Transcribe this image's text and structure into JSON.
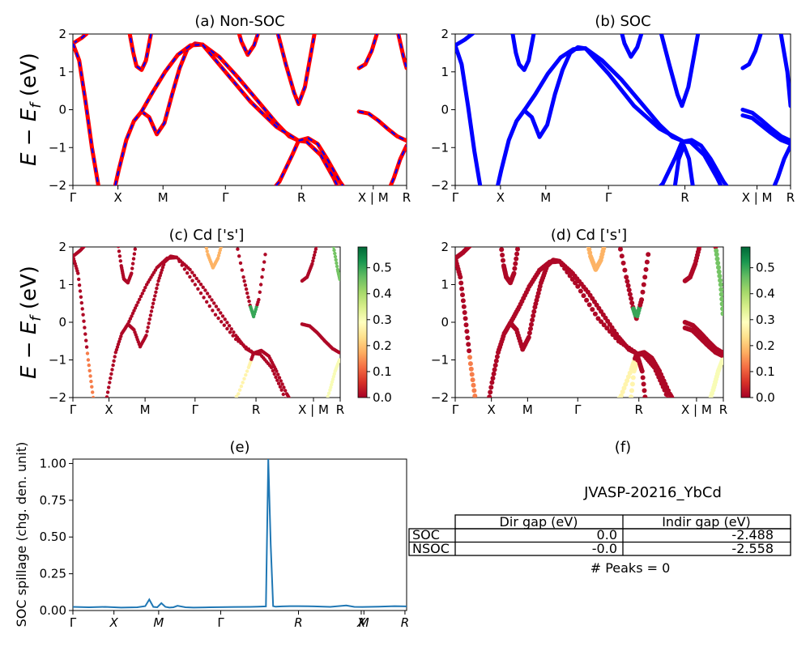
{
  "figure": {
    "ylabel_main": "E − E_f (eV)",
    "panel_a_title": "(a) Non-SOC",
    "panel_b_title": "(b) SOC",
    "panel_c_title": "(c)  Cd ['s']",
    "panel_d_title": "(d) Cd ['s']",
    "panel_e_title": "(e)",
    "panel_f_title": "(f)"
  },
  "colors": {
    "nonsoc_line": "#ff0000",
    "nonsoc_dash": "#0000ff",
    "soc_line": "#0000ff",
    "spillage_line": "#1f77b4",
    "colormap": [
      "#a50026",
      "#d73027",
      "#f46d43",
      "#fdae61",
      "#fee08b",
      "#ffffbf",
      "#d9ef8b",
      "#a6d96a",
      "#66bd63",
      "#1a9850",
      "#006837"
    ]
  },
  "chart_data": [
    {
      "type": "line",
      "title": "(a) Non-SOC",
      "ylabel": "E − E_f (eV)",
      "ylim": [
        -2,
        2
      ],
      "xticks": [
        "Γ",
        "X",
        "M",
        "Γ",
        "R",
        "X | M",
        "R"
      ],
      "yticks": [
        "−2",
        "−1",
        "0",
        "1",
        "2"
      ],
      "series": [
        {
          "x": [
            0,
            0.14,
            0.28,
            0.5
          ],
          "y": [
            1.75,
            1.9,
            2.1,
            2.6
          ]
        },
        {
          "x": [
            0,
            0.1,
            0.2,
            0.3,
            0.4,
            0.5
          ],
          "y": [
            1.75,
            1.3,
            0.2,
            -1.0,
            -2.0,
            -2.6
          ]
        },
        {
          "x": [
            0.6,
            0.72,
            0.84,
            0.96,
            1.08
          ],
          "y": [
            -2.5,
            -1.6,
            -0.8,
            -0.3,
            -0.05
          ]
        },
        {
          "x": [
            1.08,
            1.2,
            1.32,
            1.44,
            1.56,
            1.68,
            1.8,
            1.92,
            2.04
          ],
          "y": [
            -0.05,
            -0.2,
            -0.65,
            -0.35,
            0.4,
            1.1,
            1.6,
            1.75,
            1.72
          ]
        },
        {
          "x": [
            1.08,
            1.25,
            1.45,
            1.65,
            1.85,
            2.04
          ],
          "y": [
            -0.05,
            0.45,
            1.0,
            1.45,
            1.7,
            1.72
          ]
        },
        {
          "x": [
            0.85,
            0.95,
            1.0,
            1.08,
            1.15,
            1.25
          ],
          "y": [
            2.4,
            1.5,
            1.15,
            1.05,
            1.3,
            2.2
          ]
        },
        {
          "x": [
            2.04,
            2.3,
            2.6,
            2.9,
            3.2,
            3.4,
            3.55
          ],
          "y": [
            1.72,
            1.4,
            0.85,
            0.25,
            -0.35,
            -0.7,
            -0.82
          ]
        },
        {
          "x": [
            2.04,
            2.4,
            2.8,
            3.2,
            3.55
          ],
          "y": [
            1.72,
            1.0,
            0.2,
            -0.45,
            -0.82
          ]
        },
        {
          "x": [
            2.55,
            2.65,
            2.75,
            2.85,
            2.95
          ],
          "y": [
            2.4,
            1.8,
            1.45,
            1.7,
            2.2
          ]
        },
        {
          "x": [
            3.15,
            3.35,
            3.48,
            3.55,
            3.65,
            3.8
          ],
          "y": [
            2.5,
            1.2,
            0.45,
            0.15,
            0.6,
            2.0
          ]
        },
        {
          "x": [
            3.0,
            3.25,
            3.45,
            3.55,
            3.68,
            3.9,
            4.1,
            4.33
          ],
          "y": [
            -2.4,
            -1.9,
            -1.2,
            -0.82,
            -0.85,
            -1.2,
            -1.8,
            -2.6
          ]
        },
        {
          "x": [
            3.55,
            3.7,
            3.85,
            4.0,
            4.2,
            4.33
          ],
          "y": [
            -0.82,
            -0.75,
            -0.9,
            -1.3,
            -1.9,
            -2.2
          ]
        },
        {
          "x": [
            4.5,
            4.6,
            4.7,
            4.8,
            4.9
          ],
          "y": [
            1.1,
            1.2,
            1.55,
            2.1,
            2.6
          ]
        },
        {
          "x": [
            4.5,
            4.65,
            4.8,
            4.95,
            5.1,
            5.25
          ],
          "y": [
            -0.05,
            -0.1,
            -0.28,
            -0.5,
            -0.7,
            -0.82
          ]
        },
        {
          "x": [
            4.9,
            5.05,
            5.15,
            5.25
          ],
          "y": [
            -2.4,
            -1.8,
            -1.3,
            -0.95
          ]
        },
        {
          "x": [
            5.05,
            5.12,
            5.2,
            5.25
          ],
          "y": [
            2.5,
            2.0,
            1.4,
            1.1
          ]
        }
      ]
    },
    {
      "type": "line",
      "title": "(b) SOC",
      "ylim": [
        -2,
        2
      ],
      "xticks": [
        "Γ",
        "X",
        "M",
        "Γ",
        "R",
        "X | M",
        "R"
      ],
      "yticks": [
        "−2",
        "−1",
        "0",
        "1",
        "2"
      ],
      "series": [
        {
          "x": [
            0,
            0.15,
            0.3,
            0.5
          ],
          "y": [
            1.7,
            1.85,
            2.05,
            2.6
          ]
        },
        {
          "x": [
            0,
            0.1,
            0.2,
            0.3,
            0.4,
            0.5
          ],
          "y": [
            1.7,
            1.2,
            0.1,
            -1.1,
            -2.1,
            -2.7
          ]
        },
        {
          "x": [
            0.6,
            0.72,
            0.84,
            0.96,
            1.08
          ],
          "y": [
            -2.5,
            -1.6,
            -0.8,
            -0.3,
            -0.02
          ]
        },
        {
          "x": [
            1.08,
            1.2,
            1.32,
            1.44,
            1.56,
            1.68,
            1.8,
            1.92,
            2.04
          ],
          "y": [
            -0.02,
            -0.2,
            -0.72,
            -0.4,
            0.4,
            1.05,
            1.5,
            1.65,
            1.62
          ]
        },
        {
          "x": [
            1.08,
            1.25,
            1.45,
            1.65,
            1.85,
            2.04
          ],
          "y": [
            -0.02,
            0.4,
            0.95,
            1.38,
            1.6,
            1.62
          ]
        },
        {
          "x": [
            0.85,
            0.95,
            1.0,
            1.08,
            1.15,
            1.25
          ],
          "y": [
            2.5,
            1.5,
            1.2,
            1.05,
            1.3,
            2.2
          ]
        },
        {
          "x": [
            2.04,
            2.3,
            2.6,
            2.9,
            3.2,
            3.4,
            3.55
          ],
          "y": [
            1.62,
            1.3,
            0.8,
            0.2,
            -0.4,
            -0.72,
            -0.82
          ]
        },
        {
          "x": [
            2.04,
            2.4,
            2.8,
            3.2,
            3.55
          ],
          "y": [
            1.62,
            0.95,
            0.1,
            -0.5,
            -0.82
          ]
        },
        {
          "x": [
            2.55,
            2.65,
            2.75,
            2.85,
            2.95
          ],
          "y": [
            2.4,
            1.75,
            1.4,
            1.65,
            2.2
          ]
        },
        {
          "x": [
            3.15,
            3.35,
            3.48,
            3.55,
            3.65,
            3.8
          ],
          "y": [
            2.5,
            1.2,
            0.4,
            0.1,
            0.6,
            2.0
          ]
        },
        {
          "x": [
            3.0,
            3.25,
            3.45,
            3.55,
            3.68,
            3.9,
            4.1,
            4.33
          ],
          "y": [
            -2.4,
            -1.95,
            -1.25,
            -0.85,
            -0.85,
            -1.2,
            -1.8,
            -2.6
          ]
        },
        {
          "x": [
            3.55,
            3.7,
            3.85,
            4.0,
            4.2,
            4.33
          ],
          "y": [
            -0.85,
            -0.8,
            -0.95,
            -1.3,
            -1.9,
            -2.2
          ]
        },
        {
          "x": [
            3.4,
            3.5,
            3.58,
            3.66,
            3.76
          ],
          "y": [
            -2.5,
            -1.3,
            -0.95,
            -1.3,
            -2.5
          ]
        },
        {
          "x": [
            4.5,
            4.6,
            4.7,
            4.8,
            4.9
          ],
          "y": [
            1.1,
            1.2,
            1.55,
            2.1,
            2.6
          ]
        },
        {
          "x": [
            4.5,
            4.65,
            4.8,
            4.95,
            5.1,
            5.25
          ],
          "y": [
            0.0,
            -0.08,
            -0.28,
            -0.5,
            -0.7,
            -0.82
          ]
        },
        {
          "x": [
            4.5,
            4.65,
            4.8,
            4.95,
            5.1,
            5.25
          ],
          "y": [
            -0.15,
            -0.22,
            -0.42,
            -0.62,
            -0.8,
            -0.9
          ]
        },
        {
          "x": [
            4.9,
            5.05,
            5.15,
            5.25
          ],
          "y": [
            -2.4,
            -1.8,
            -1.3,
            -0.95
          ]
        },
        {
          "x": [
            5.05,
            5.12,
            5.2,
            5.25
          ],
          "y": [
            2.5,
            1.8,
            1.0,
            0.1
          ]
        }
      ]
    },
    {
      "type": "scatter",
      "title": "(c)  Cd ['s']",
      "ylabel": "E − E_f (eV)",
      "ylim": [
        -2,
        2
      ],
      "xticks": [
        "Γ",
        "X",
        "M",
        "Γ",
        "R",
        "X | M",
        "R"
      ],
      "yticks": [
        "−2",
        "−1",
        "0",
        "1",
        "2"
      ],
      "colorbar_ticks": [
        "0.0",
        "0.1",
        "0.2",
        "0.3",
        "0.4",
        "0.5"
      ],
      "colorbar_max": 0.58
    },
    {
      "type": "scatter",
      "title": "(d) Cd ['s']",
      "ylim": [
        -2,
        2
      ],
      "xticks": [
        "Γ",
        "X",
        "M",
        "Γ",
        "R",
        "X | M",
        "R"
      ],
      "yticks": [
        "−2",
        "−1",
        "0",
        "1",
        "2"
      ],
      "colorbar_ticks": [
        "0.0",
        "0.1",
        "0.2",
        "0.3",
        "0.4",
        "0.5"
      ],
      "colorbar_max": 0.58
    },
    {
      "type": "line",
      "title": "(e)",
      "ylabel": "SOC spillage (chg. den. unit)",
      "ylim": [
        0,
        1.03
      ],
      "yticks": [
        "0.00",
        "0.25",
        "0.50",
        "0.75",
        "1.00"
      ],
      "xticks": [
        "Γ",
        "X",
        "M",
        "Γ",
        "R",
        "X",
        "M",
        "R"
      ],
      "x": [
        0,
        20,
        40,
        60,
        80,
        90,
        95,
        100,
        105,
        110,
        115,
        120,
        125,
        130,
        140,
        150,
        170,
        200,
        220,
        230,
        240,
        243,
        246,
        249,
        252,
        260,
        270,
        280,
        300,
        320,
        340,
        350,
        360,
        380,
        400,
        415
      ],
      "y": [
        0.025,
        0.022,
        0.025,
        0.02,
        0.022,
        0.03,
        0.075,
        0.025,
        0.022,
        0.05,
        0.025,
        0.02,
        0.022,
        0.032,
        0.022,
        0.02,
        0.022,
        0.024,
        0.025,
        0.026,
        0.028,
        1.03,
        0.45,
        0.03,
        0.026,
        0.028,
        0.03,
        0.03,
        0.028,
        0.025,
        0.034,
        0.025,
        0.024,
        0.026,
        0.03,
        0.028
      ]
    },
    {
      "type": "table",
      "title": "(f)",
      "header": "JVASP-20216_YbCd",
      "columns": [
        "Dir gap (eV)",
        "Indir gap (eV)"
      ],
      "rows": [
        {
          "label": "SOC",
          "cells": [
            "0.0",
            "-2.488"
          ]
        },
        {
          "label": "NSOC",
          "cells": [
            "-0.0",
            "-2.558"
          ]
        }
      ],
      "note": "# Peaks = 0"
    }
  ]
}
